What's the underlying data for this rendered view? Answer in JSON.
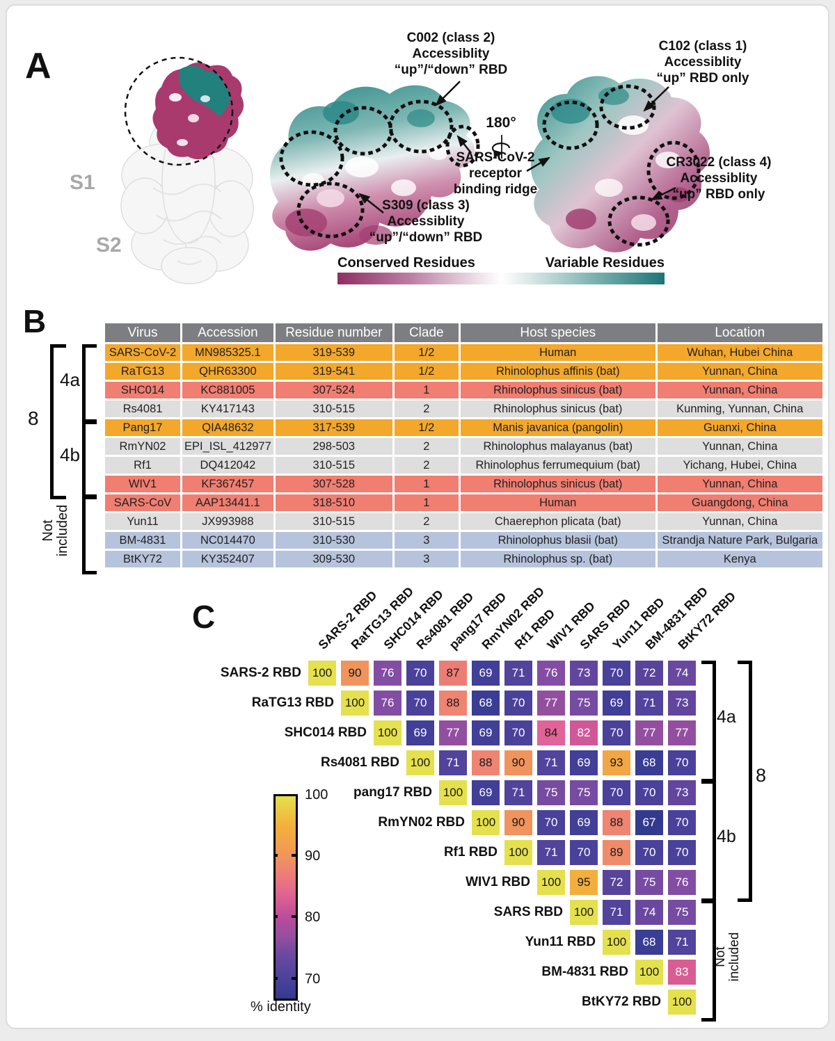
{
  "panelA": {
    "label": "A",
    "spike_labels": {
      "s1": "S1",
      "s2": "S2"
    },
    "rotation_label": "180°",
    "annotations": {
      "c002": [
        "C002 (class 2)",
        "Accessiblity",
        "“up”/“down” RBD"
      ],
      "c102": [
        "C102 (class 1)",
        "Accessiblity",
        "“up” RBD only"
      ],
      "s309": [
        "S309 (class 3)",
        "Accessiblity",
        "“up”/“down” RBD"
      ],
      "cr3022": [
        "CR3022 (class 4)",
        "Accessiblity",
        "“up” RBD only"
      ],
      "ridge": [
        "SARS-CoV-2",
        "receptor",
        "binding ridge"
      ]
    },
    "colorbar": {
      "left": "Conserved Residues",
      "right": "Variable Residues",
      "left_color": "#8e2f63",
      "right_color": "#1d7478"
    }
  },
  "panelB": {
    "label": "B",
    "brackets": {
      "outer": "8",
      "a": "4a",
      "b": "4b",
      "excluded_line1": "Not",
      "excluded_line2": "included"
    },
    "row_colors": {
      "orange": "#F3A72B",
      "salmon": "#F07E71",
      "gray": "#DEDEDF",
      "blue": "#B6C3DC",
      "header": "#7C7E81"
    },
    "table": {
      "headers": [
        "Virus",
        "Accession",
        "Residue number",
        "Clade",
        "Host species",
        "Location"
      ],
      "rows": [
        {
          "cells": [
            "SARS-CoV-2",
            "MN985325.1",
            "319-539",
            "1/2",
            "Human",
            "Wuhan, Hubei China"
          ],
          "color": "orange"
        },
        {
          "cells": [
            "RaTG13",
            "QHR63300",
            "319-541",
            "1/2",
            "Rhinolophus affinis (bat)",
            "Yunnan, China"
          ],
          "color": "orange"
        },
        {
          "cells": [
            "SHC014",
            "KC881005",
            "307-524",
            "1",
            "Rhinolophus sinicus (bat)",
            "Yunnan, China"
          ],
          "color": "salmon"
        },
        {
          "cells": [
            "Rs4081",
            "KY417143",
            "310-515",
            "2",
            "Rhinolophus sinicus (bat)",
            "Kunming, Yunnan, China"
          ],
          "color": "gray"
        },
        {
          "cells": [
            "Pang17",
            "QIA48632",
            "317-539",
            "1/2",
            "Manis javanica (pangolin)",
            "Guanxi, China"
          ],
          "color": "orange"
        },
        {
          "cells": [
            "RmYN02",
            "EPI_ISL_412977",
            "298-503",
            "2",
            "Rhinolophus malayanus (bat)",
            "Yunnan, China"
          ],
          "color": "gray"
        },
        {
          "cells": [
            "Rf1",
            "DQ412042",
            "310-515",
            "2",
            "Rhinolophus ferrumequium (bat)",
            "Yichang, Hubei, China"
          ],
          "color": "gray"
        },
        {
          "cells": [
            "WIV1",
            "KF367457",
            "307-528",
            "1",
            "Rhinolophus sinicus (bat)",
            "Yunnan, China"
          ],
          "color": "salmon"
        },
        {
          "cells": [
            "SARS-CoV",
            "AAP13441.1",
            "318-510",
            "1",
            "Human",
            "Guangdong, China"
          ],
          "color": "salmon"
        },
        {
          "cells": [
            "Yun11",
            "JX993988",
            "310-515",
            "2",
            "Chaerephon plicata (bat)",
            "Yunnan, China"
          ],
          "color": "gray"
        },
        {
          "cells": [
            "BM-4831",
            "NC014470",
            "310-530",
            "3",
            "Rhinolophus blasii (bat)",
            "Strandja Nature Park, Bulgaria"
          ],
          "color": "blue"
        },
        {
          "cells": [
            "BtKY72",
            "KY352407",
            "309-530",
            "3",
            "Rhinolophus sp. (bat)",
            "Kenya"
          ],
          "color": "blue"
        }
      ]
    }
  },
  "panelC": {
    "label": "C",
    "brackets": {
      "a": "4a",
      "b": "4b",
      "outer": "8",
      "excluded_line1": "Not",
      "excluded_line2": "included"
    }
  },
  "chart_data": {
    "type": "heatmap",
    "title": "Pairwise RBD amino-acid identity matrix",
    "row_labels": [
      "SARS-2 RBD",
      "RaTG13 RBD",
      "SHC014 RBD",
      "Rs4081 RBD",
      "pang17 RBD",
      "RmYN02 RBD",
      "Rf1 RBD",
      "WIV1 RBD",
      "SARS RBD",
      "Yun11 RBD",
      "BM-4831 RBD",
      "BtKY72 RBD"
    ],
    "col_labels": [
      "SARS-2 RBD",
      "RatTG13 RBD",
      "SHC014 RBD",
      "Rs4081 RBD",
      "pang17 RBD",
      "RmYN02 RBD",
      "Rf1 RBD",
      "WIV1 RBD",
      "SARS RBD",
      "Yun11 RBD",
      "BM-4831 RBD",
      "BtKY72 RBD"
    ],
    "matrix_upper_triangle": [
      [
        100,
        90,
        76,
        70,
        87,
        69,
        71,
        76,
        73,
        70,
        72,
        74
      ],
      [
        100,
        76,
        70,
        88,
        68,
        70,
        77,
        75,
        69,
        71,
        73
      ],
      [
        100,
        69,
        77,
        69,
        70,
        84,
        82,
        70,
        77,
        77
      ],
      [
        100,
        71,
        88,
        90,
        71,
        69,
        93,
        68,
        70
      ],
      [
        100,
        69,
        71,
        75,
        75,
        70,
        70,
        73
      ],
      [
        100,
        90,
        70,
        69,
        88,
        67,
        70
      ],
      [
        100,
        71,
        70,
        89,
        70,
        70
      ],
      [
        100,
        95,
        72,
        75,
        76
      ],
      [
        100,
        71,
        74,
        75
      ],
      [
        100,
        68,
        71
      ],
      [
        100,
        83
      ],
      [
        100
      ]
    ],
    "colorbar": {
      "label": "% identity",
      "ticks": [
        100,
        90,
        80,
        70
      ],
      "min": 67,
      "max": 100
    },
    "legend_position": "left"
  }
}
